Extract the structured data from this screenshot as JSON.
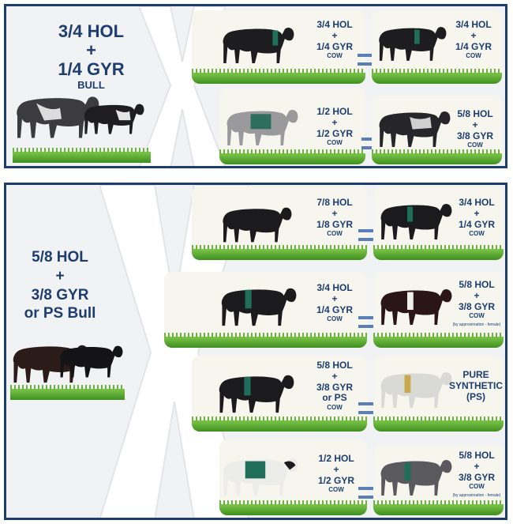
{
  "colors": {
    "navy": "#1c3d6e",
    "grass": "#5aa52f",
    "equals": "#5a7fb5",
    "black_coat": "#1d1d1f"
  },
  "panel1": {
    "bull": {
      "line1": "3/4 HOL",
      "plus": "+",
      "line2": "1/4 GYR",
      "type": "BULL"
    },
    "rows": [
      {
        "dam": {
          "line1": "3/4 HOL",
          "plus": "+",
          "line2": "1/4 GYR",
          "type": "COW"
        },
        "offspring": {
          "line1": "3/4 HOL",
          "plus": "+",
          "line2": "1/4 GYR",
          "type": "COW"
        }
      },
      {
        "dam": {
          "line1": "1/2 HOL",
          "plus": "+",
          "line2": "1/2 GYR",
          "type": "COW"
        },
        "offspring": {
          "line1": "5/8 HOL",
          "plus": "+",
          "line2": "3/8 GYR",
          "type": "COW"
        }
      }
    ]
  },
  "panel2": {
    "bull": {
      "line1": "5/8 HOL",
      "plus": "+",
      "line2": "3/8 GYR",
      "line3": "or PS Bull"
    },
    "rows": [
      {
        "dam": {
          "line1": "7/8 HOL",
          "plus": "+",
          "line2": "1/8 GYR",
          "type": "COW"
        },
        "offspring": {
          "line1": "3/4 HOL",
          "plus": "+",
          "line2": "1/4 GYR",
          "type": "COW"
        }
      },
      {
        "dam": {
          "line1": "3/4 HOL",
          "plus": "+",
          "line2": "1/4 GYR",
          "type": "COW"
        },
        "offspring": {
          "line1": "5/8 HOL",
          "plus": "+",
          "line2": "3/8 GYR",
          "type": "COW",
          "note": "(by approximation - female)"
        }
      },
      {
        "dam": {
          "line1": "5/8 HOL",
          "plus": "+",
          "line2": "3/8 GYR",
          "line3": "or PS",
          "type": "COW"
        },
        "offspring": {
          "line1": "PURE",
          "line2": "SYNTHETIC",
          "line3": "(PS)"
        }
      },
      {
        "dam": {
          "line1": "1/2 HOL",
          "plus": "+",
          "line2": "1/2 GYR",
          "type": "COW"
        },
        "offspring": {
          "line1": "5/8 HOL",
          "plus": "+",
          "line2": "3/8 GYR",
          "type": "COW",
          "note": "(by approximation - female)"
        }
      }
    ]
  }
}
